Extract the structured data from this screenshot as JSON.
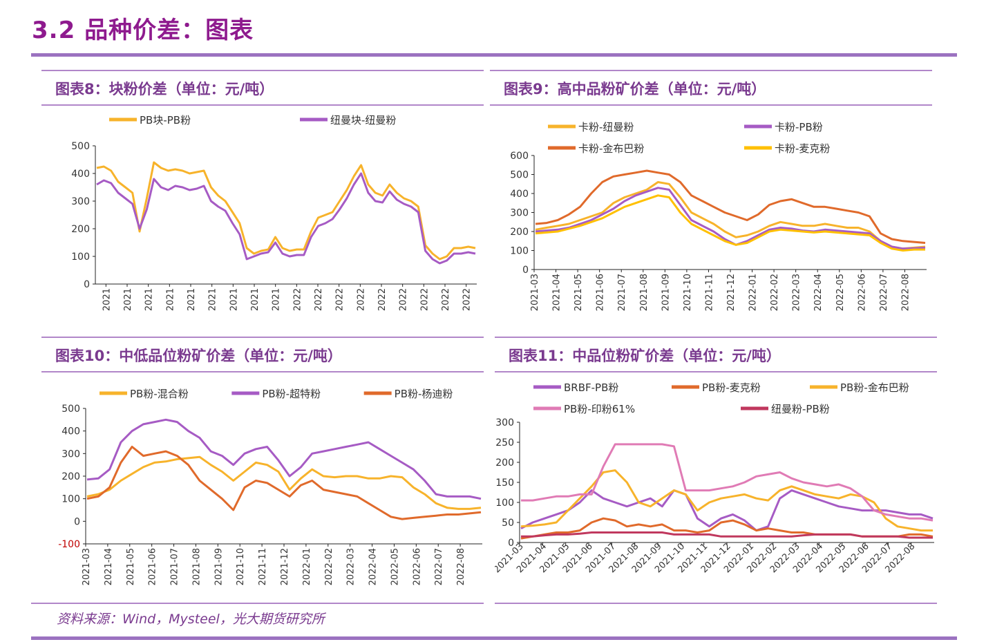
{
  "page": {
    "section_title": "3.2 品种价差：图表",
    "source": "资料来源：Wind，Mysteel，光大期货研究所"
  },
  "chart_data": [
    {
      "id": "c8",
      "type": "line",
      "panel_title": "图表8：块粉价差（单位：元/吨）",
      "x_labels": [
        "2021",
        "2021",
        "2021",
        "2021",
        "2021",
        "2021",
        "2021",
        "2021",
        "2021",
        "2022",
        "2022",
        "2022",
        "2022",
        "2022",
        "2022",
        "2022",
        "2022",
        "2022"
      ],
      "ylim": [
        0,
        500
      ],
      "y_ticks": [
        "0",
        "100",
        "200",
        "300",
        "400",
        "500"
      ],
      "legend_rows": [
        [
          "PB块-PB粉",
          "纽曼块-纽曼粉"
        ]
      ],
      "series": [
        {
          "name": "PB块-PB粉",
          "color": "#f7b32b",
          "values": [
            420,
            425,
            410,
            370,
            350,
            330,
            190,
            310,
            440,
            420,
            410,
            415,
            410,
            400,
            405,
            410,
            350,
            320,
            300,
            260,
            220,
            130,
            110,
            120,
            125,
            170,
            130,
            120,
            125,
            125,
            190,
            240,
            250,
            260,
            300,
            340,
            390,
            430,
            360,
            330,
            320,
            360,
            330,
            310,
            300,
            280,
            140,
            110,
            90,
            100,
            130,
            130,
            135,
            130
          ]
        },
        {
          "name": "纽曼块-纽曼粉",
          "color": "#a65bc4",
          "values": [
            360,
            375,
            365,
            330,
            310,
            290,
            200,
            270,
            380,
            350,
            340,
            355,
            350,
            340,
            345,
            355,
            300,
            280,
            265,
            220,
            180,
            90,
            100,
            110,
            115,
            150,
            110,
            100,
            105,
            105,
            170,
            210,
            220,
            235,
            270,
            310,
            360,
            400,
            330,
            300,
            295,
            335,
            305,
            290,
            280,
            260,
            120,
            90,
            75,
            85,
            110,
            110,
            115,
            110
          ]
        }
      ]
    },
    {
      "id": "c9",
      "type": "line",
      "panel_title": "图表9：高中品粉矿价差（单位：元/吨）",
      "x_labels": [
        "2021-03",
        "2021-04",
        "2021-05",
        "2021-06",
        "2021-07",
        "2021-08",
        "2021-09",
        "2021-10",
        "2021-11",
        "2021-12",
        "2022-01",
        "2022-02",
        "2022-03",
        "2022-04",
        "2022-05",
        "2022-06",
        "2022-07",
        "2022-08"
      ],
      "ylim": [
        0,
        600
      ],
      "y_ticks": [
        "0",
        "100",
        "200",
        "300",
        "400",
        "500",
        "600"
      ],
      "legend_rows": [
        [
          "卡粉-纽曼粉",
          "卡粉-PB粉"
        ],
        [
          "卡粉-金布巴粉",
          "卡粉-麦克粉"
        ]
      ],
      "series": [
        {
          "name": "卡粉-纽曼粉",
          "color": "#f7b32b",
          "values": [
            210,
            220,
            230,
            240,
            260,
            280,
            300,
            350,
            380,
            400,
            420,
            460,
            450,
            380,
            300,
            270,
            240,
            200,
            170,
            180,
            200,
            230,
            250,
            240,
            230,
            230,
            240,
            230,
            220,
            220,
            200,
            150,
            120,
            110,
            115,
            120
          ]
        },
        {
          "name": "卡粉-PB粉",
          "color": "#a65bc4",
          "values": [
            200,
            205,
            210,
            220,
            240,
            260,
            290,
            320,
            360,
            390,
            410,
            430,
            420,
            340,
            260,
            230,
            200,
            160,
            130,
            150,
            180,
            210,
            220,
            215,
            205,
            200,
            210,
            205,
            200,
            195,
            190,
            150,
            120,
            110,
            112,
            115
          ]
        },
        {
          "name": "卡粉-金布巴粉",
          "color": "#e06a2b",
          "values": [
            240,
            245,
            260,
            290,
            330,
            400,
            460,
            490,
            500,
            510,
            520,
            510,
            500,
            460,
            390,
            360,
            330,
            300,
            280,
            260,
            290,
            340,
            360,
            370,
            350,
            330,
            330,
            320,
            310,
            300,
            280,
            190,
            160,
            150,
            145,
            140
          ]
        },
        {
          "name": "卡粉-麦克粉",
          "color": "#ffc000",
          "values": [
            190,
            195,
            200,
            215,
            230,
            250,
            270,
            300,
            330,
            350,
            370,
            390,
            380,
            300,
            240,
            210,
            180,
            150,
            130,
            140,
            170,
            200,
            210,
            205,
            200,
            195,
            200,
            195,
            190,
            185,
            180,
            140,
            110,
            100,
            105,
            105
          ]
        }
      ]
    },
    {
      "id": "c10",
      "type": "line",
      "panel_title": "图表10：中低品位粉矿价差（单位：元/吨）",
      "x_labels": [
        "2021-03",
        "2021-04",
        "2021-05",
        "2021-06",
        "2021-07",
        "2021-08",
        "2021-09",
        "2021-10",
        "2021-11",
        "2021-12",
        "2022-01",
        "2022-02",
        "2022-03",
        "2022-04",
        "2022-05",
        "2022-06",
        "2022-07",
        "2022-08"
      ],
      "ylim": [
        -100,
        500
      ],
      "y_ticks": [
        "-100",
        "0",
        "100",
        "200",
        "300",
        "400",
        "500"
      ],
      "legend_rows": [
        [
          "PB粉-混合粉",
          "PB粉-超特粉",
          "PB粉-杨迪粉"
        ]
      ],
      "series": [
        {
          "name": "PB粉-混合粉",
          "color": "#f7b32b",
          "values": [
            110,
            120,
            140,
            180,
            210,
            240,
            260,
            265,
            275,
            280,
            285,
            250,
            220,
            180,
            220,
            260,
            250,
            220,
            140,
            190,
            230,
            200,
            195,
            200,
            200,
            190,
            190,
            200,
            195,
            150,
            120,
            80,
            60,
            55,
            55,
            60
          ]
        },
        {
          "name": "PB粉-超特粉",
          "color": "#a65bc4",
          "values": [
            185,
            190,
            230,
            350,
            400,
            430,
            440,
            450,
            440,
            400,
            370,
            310,
            290,
            250,
            300,
            320,
            330,
            270,
            200,
            240,
            300,
            310,
            320,
            330,
            340,
            350,
            320,
            290,
            260,
            230,
            180,
            120,
            110,
            110,
            110,
            100
          ]
        },
        {
          "name": "PB粉-杨迪粉",
          "color": "#e06a2b",
          "values": [
            100,
            110,
            150,
            260,
            330,
            290,
            300,
            310,
            290,
            250,
            180,
            140,
            100,
            50,
            150,
            180,
            170,
            140,
            110,
            160,
            180,
            140,
            130,
            120,
            110,
            80,
            50,
            20,
            10,
            15,
            20,
            25,
            30,
            30,
            35,
            40
          ]
        }
      ]
    },
    {
      "id": "c11",
      "type": "line",
      "panel_title": "图表11：中品位粉矿价差（单位：元/吨）",
      "x_labels": [
        "2021-03",
        "2021-04",
        "2021-05",
        "2021-06",
        "2021-07",
        "2021-08",
        "2021-09",
        "2021-10",
        "2021-11",
        "2021-12",
        "2022-01",
        "2022-02",
        "2022-03",
        "2022-04",
        "2022-05",
        "2022-06",
        "2022-07",
        "2022-08"
      ],
      "ylim": [
        0,
        300
      ],
      "y_ticks": [
        "0",
        "50",
        "100",
        "150",
        "200",
        "250",
        "300"
      ],
      "legend_rows": [
        [
          "BRBF-PB粉",
          "PB粉-麦克粉",
          "PB粉-金布巴粉"
        ],
        [
          "PB粉-印粉61%",
          "纽曼粉-PB粉"
        ]
      ],
      "series": [
        {
          "name": "BRBF-PB粉",
          "color": "#a65bc4",
          "values": [
            35,
            50,
            60,
            70,
            80,
            100,
            130,
            110,
            100,
            90,
            100,
            110,
            90,
            130,
            120,
            60,
            40,
            60,
            70,
            55,
            30,
            40,
            110,
            130,
            120,
            110,
            100,
            90,
            85,
            80,
            80,
            80,
            75,
            70,
            70,
            60
          ]
        },
        {
          "name": "PB粉-麦克粉",
          "color": "#e06a2b",
          "values": [
            10,
            15,
            20,
            25,
            25,
            30,
            50,
            60,
            55,
            40,
            45,
            40,
            45,
            30,
            30,
            25,
            30,
            50,
            55,
            45,
            30,
            35,
            30,
            25,
            25,
            20,
            20,
            20,
            20,
            15,
            15,
            15,
            15,
            20,
            20,
            15
          ]
        },
        {
          "name": "PB粉-金布巴粉",
          "color": "#f7b32b",
          "values": [
            40,
            42,
            45,
            50,
            80,
            110,
            140,
            175,
            180,
            150,
            100,
            90,
            110,
            130,
            120,
            80,
            100,
            110,
            115,
            120,
            110,
            105,
            130,
            140,
            130,
            120,
            115,
            110,
            120,
            115,
            100,
            60,
            40,
            35,
            30,
            30
          ]
        },
        {
          "name": "PB粉-印粉61%",
          "color": "#e07bb5",
          "values": [
            105,
            105,
            110,
            115,
            115,
            120,
            120,
            190,
            245,
            245,
            245,
            245,
            245,
            240,
            130,
            130,
            130,
            135,
            140,
            150,
            165,
            170,
            175,
            160,
            150,
            145,
            140,
            145,
            135,
            115,
            80,
            70,
            65,
            60,
            60,
            55
          ]
        },
        {
          "name": "纽曼粉-PB粉",
          "color": "#c0385e",
          "values": [
            15,
            15,
            18,
            20,
            20,
            22,
            25,
            25,
            25,
            25,
            25,
            25,
            25,
            20,
            20,
            20,
            20,
            15,
            15,
            15,
            15,
            15,
            15,
            15,
            18,
            20,
            20,
            20,
            20,
            15,
            15,
            15,
            15,
            12,
            12,
            12
          ]
        }
      ]
    }
  ]
}
